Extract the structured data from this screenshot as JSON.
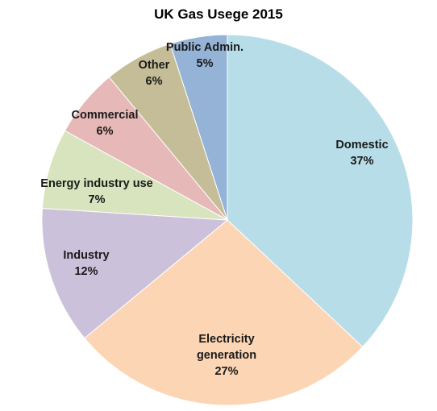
{
  "chart_data": {
    "type": "pie",
    "title": "UK Gas Usege 2015",
    "slices": [
      {
        "label": "Domestic",
        "value": 37,
        "display": "37%",
        "color": "#b7dde8"
      },
      {
        "label": "Electricity generation",
        "label_lines": [
          "Electricity",
          "generation"
        ],
        "value": 27,
        "display": "27%",
        "color": "#fcd5b5"
      },
      {
        "label": "Industry",
        "value": 12,
        "display": "12%",
        "color": "#ccc1da"
      },
      {
        "label": "Energy industry use",
        "value": 7,
        "display": "7%",
        "color": "#d7e4bd"
      },
      {
        "label": "Commercial",
        "value": 6,
        "display": "6%",
        "color": "#e6b9b8"
      },
      {
        "label": "Other",
        "value": 6,
        "display": "6%",
        "color": "#c4bd97"
      },
      {
        "label": "Public Admin.",
        "value": 5,
        "display": "5%",
        "color": "#95b3d7"
      }
    ]
  }
}
